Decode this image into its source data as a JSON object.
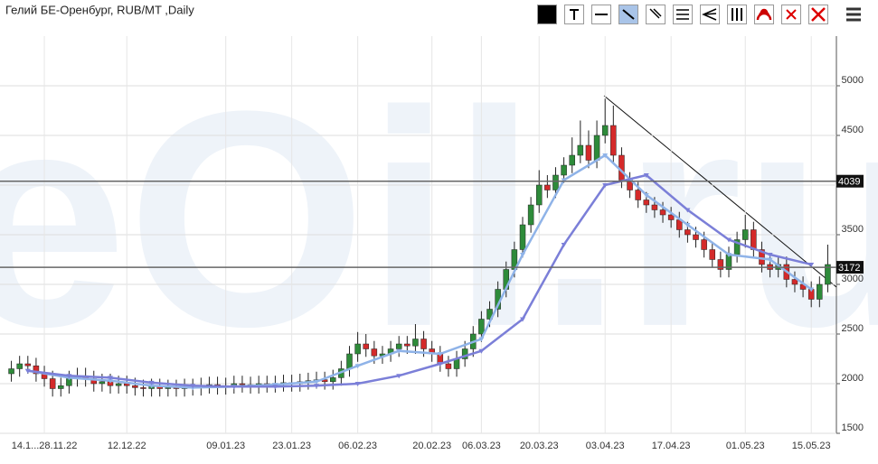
{
  "chart_data": {
    "type": "candlestick",
    "title": "Гелий БЕ-Оренбург, RUB/MT ,Daily",
    "watermark": "eOil.ru",
    "categories": [
      null,
      null,
      null,
      null,
      "14.1...28.11.22",
      null,
      null,
      null,
      null,
      null,
      null,
      null,
      null,
      null,
      "12.12.22",
      null,
      null,
      null,
      null,
      null,
      null,
      null,
      null,
      null,
      null,
      null,
      "09.01.23",
      null,
      null,
      null,
      null,
      null,
      null,
      null,
      "23.01.23",
      null,
      null,
      null,
      null,
      null,
      null,
      null,
      "06.02.23",
      null,
      null,
      null,
      null,
      null,
      null,
      null,
      null,
      "20.02.23",
      null,
      null,
      null,
      null,
      null,
      "06.03.23",
      null,
      null,
      null,
      null,
      null,
      null,
      "20.03.23",
      null,
      null,
      null,
      null,
      null,
      null,
      null,
      "03.04.23",
      null,
      null,
      null,
      null,
      null,
      null,
      null,
      "17.04.23",
      null,
      null,
      null,
      null,
      null,
      null,
      null,
      null,
      "01.05.23",
      null,
      null,
      null,
      null,
      null,
      null,
      null,
      "15.05.23",
      null,
      null
    ],
    "open": [
      2100,
      2150,
      2200,
      2180,
      2100,
      2050,
      1950,
      1980,
      2050,
      2080,
      2050,
      2000,
      2020,
      1980,
      2000,
      1980,
      1960,
      1950,
      1970,
      1950,
      1960,
      1950,
      1970,
      1960,
      1980,
      1990,
      1970,
      1980,
      2000,
      1990,
      1980,
      2000,
      1990,
      2000,
      2010,
      2000,
      2020,
      2030,
      2040,
      2020,
      2060,
      2150,
      2300,
      2400,
      2350,
      2280,
      2300,
      2350,
      2400,
      2380,
      2450,
      2350,
      2300,
      2200,
      2150,
      2250,
      2350,
      2500,
      2650,
      2750,
      2950,
      3150,
      3350,
      3600,
      3800,
      4000,
      3950,
      4100,
      4200,
      4300,
      4400,
      4250,
      4500,
      4600,
      4300,
      4050,
      3950,
      3850,
      3800,
      3750,
      3700,
      3650,
      3550,
      3500,
      3450,
      3350,
      3250,
      3150,
      3300,
      3450,
      3550,
      3350,
      3200,
      3150,
      3200,
      3050,
      3000,
      2950,
      2850,
      3000
    ],
    "high": [
      2230,
      2280,
      2280,
      2260,
      2180,
      2130,
      2060,
      2130,
      2160,
      2160,
      2130,
      2100,
      2100,
      2080,
      2080,
      2060,
      2040,
      2050,
      2050,
      2040,
      2040,
      2050,
      2050,
      2060,
      2070,
      2070,
      2060,
      2080,
      2080,
      2070,
      2080,
      2080,
      2080,
      2090,
      2090,
      2100,
      2110,
      2120,
      2120,
      2140,
      2230,
      2380,
      2520,
      2500,
      2430,
      2380,
      2430,
      2480,
      2480,
      2600,
      2530,
      2430,
      2380,
      2280,
      2330,
      2430,
      2580,
      2730,
      2830,
      3030,
      3230,
      3430,
      3680,
      3880,
      4150,
      4100,
      4180,
      4280,
      4480,
      4650,
      4550,
      4650,
      4870,
      4800,
      4380,
      4130,
      4030,
      3930,
      3880,
      3830,
      3780,
      3730,
      3630,
      3580,
      3530,
      3430,
      3330,
      3380,
      3530,
      3700,
      3630,
      3430,
      3280,
      3280,
      3280,
      3130,
      3080,
      3030,
      3080,
      3400
    ],
    "low": [
      2020,
      2070,
      2100,
      2020,
      1970,
      1870,
      1870,
      1900,
      1970,
      1970,
      1920,
      1920,
      1900,
      1900,
      1900,
      1880,
      1870,
      1870,
      1870,
      1870,
      1870,
      1870,
      1880,
      1880,
      1900,
      1890,
      1890,
      1900,
      1910,
      1900,
      1900,
      1910,
      1910,
      1920,
      1920,
      1920,
      1940,
      1950,
      1940,
      1940,
      1980,
      2070,
      2220,
      2270,
      2200,
      2200,
      2220,
      2270,
      2300,
      2300,
      2270,
      2220,
      2120,
      2070,
      2070,
      2170,
      2270,
      2420,
      2570,
      2670,
      2870,
      3070,
      3270,
      3520,
      3720,
      3870,
      3870,
      4020,
      4120,
      4220,
      4170,
      4170,
      4420,
      4220,
      3970,
      3870,
      3770,
      3720,
      3670,
      3620,
      3570,
      3470,
      3420,
      3370,
      3270,
      3170,
      3070,
      3070,
      3220,
      3370,
      3270,
      3120,
      3070,
      3070,
      2970,
      2920,
      2870,
      2770,
      2770,
      2920
    ],
    "close": [
      2150,
      2200,
      2180,
      2100,
      2050,
      1950,
      1980,
      2050,
      2080,
      2050,
      2000,
      2020,
      1980,
      2000,
      1980,
      1960,
      1950,
      1970,
      1950,
      1960,
      1950,
      1970,
      1960,
      1980,
      1990,
      1970,
      1980,
      2000,
      1990,
      1980,
      2000,
      1990,
      2000,
      2010,
      2000,
      2020,
      2030,
      2040,
      2020,
      2060,
      2150,
      2300,
      2400,
      2350,
      2280,
      2300,
      2350,
      2400,
      2380,
      2450,
      2350,
      2300,
      2200,
      2150,
      2250,
      2350,
      2500,
      2650,
      2750,
      2950,
      3150,
      3350,
      3600,
      3800,
      4000,
      3950,
      4100,
      4200,
      4300,
      4400,
      4250,
      4500,
      4600,
      4300,
      4050,
      3950,
      3850,
      3800,
      3750,
      3700,
      3650,
      3550,
      3500,
      3450,
      3350,
      3250,
      3150,
      3300,
      3450,
      3550,
      3350,
      3200,
      3150,
      3200,
      3050,
      3000,
      2950,
      2850,
      3000,
      3200
    ],
    "up_color": "#2e8b3a",
    "down_color": "#d42a2a",
    "moving_averages": [
      {
        "color": "#8fb3e8",
        "values": [
          2130,
          2060,
          2030,
          1980,
          1960,
          1970,
          1990,
          2020,
          2180,
          2330,
          2300,
          2450,
          3300,
          4050,
          4300,
          3900,
          3600,
          3300,
          3250,
          2950
        ]
      },
      {
        "color": "#7b7fd8",
        "values": [
          2130,
          2080,
          2060,
          2010,
          1980,
          1970,
          1970,
          1980,
          2000,
          2080,
          2200,
          2330,
          2650,
          3400,
          4000,
          4100,
          3750,
          3450,
          3300,
          3200
        ]
      }
    ],
    "levels": [
      4039,
      3172
    ],
    "ylim": [
      1500,
      5500
    ],
    "yticks": [
      1500,
      2000,
      2500,
      3000,
      3500,
      4000,
      4500,
      5000
    ],
    "grid": true
  }
}
